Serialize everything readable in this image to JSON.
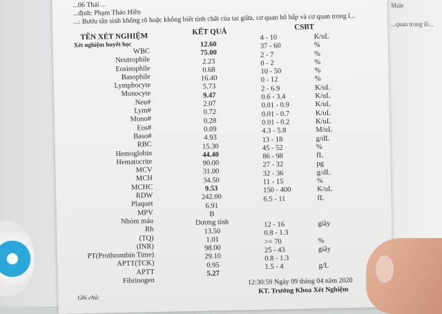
{
  "header": {
    "line0": "...06 Thái ...",
    "doctor": "...định: Phạm Thảo Hiền",
    "diagnosis": "...: Bướu tân sinh không rõ hoặc không biết tính chất của tai giữa, cơ quan hô hấp và cơ quan trong l..."
  },
  "side_text": {
    "top_right": "Male",
    "right": "...quan trong lồ..."
  },
  "columns": {
    "name": "TÊN XÉT NGHIỆM",
    "result": "KẾT QUẢ",
    "range": "CSBT"
  },
  "section": "Xét nghiệm huyết học",
  "tests": [
    "WBC",
    "Neutrophile",
    "Eosinophile",
    "Basophile",
    "Lymphocyte",
    "Monocyte",
    "Neu#",
    "Lym#",
    "Mono#",
    "Eos#",
    "Baso#",
    "RBC",
    "Hemoglobin",
    "Hematocrite",
    "MCV",
    "MCH",
    "MCHC",
    "RDW",
    "Plaquet",
    "MPV",
    "Nhóm máu",
    "Rh",
    "(TQ)",
    "(INR)",
    "PT(Prothrombin Time)",
    "APTT(TCK)",
    "APTT",
    "Fibrinogen"
  ],
  "results": [
    {
      "v": "12.60",
      "bold": true
    },
    {
      "v": "75.00",
      "bold": true
    },
    {
      "v": "2.23"
    },
    {
      "v": "0.68"
    },
    {
      "v": "16.40"
    },
    {
      "v": "5.73"
    },
    {
      "v": "9.47",
      "bold": true
    },
    {
      "v": "2.07"
    },
    {
      "v": "0.72"
    },
    {
      "v": "0.28"
    },
    {
      "v": "0.09"
    },
    {
      "v": "4.93"
    },
    {
      "v": "15.30"
    },
    {
      "v": "44.40",
      "bold": true
    },
    {
      "v": "90.00"
    },
    {
      "v": "31.00"
    },
    {
      "v": "34.50"
    },
    {
      "v": "9.53",
      "bold": true
    },
    {
      "v": "242.00"
    },
    {
      "v": "6.91"
    },
    {
      "v": "B"
    },
    {
      "v": "Dương tính"
    },
    {
      "v": "13.50"
    },
    {
      "v": "1.01"
    },
    {
      "v": "98.00"
    },
    {
      "v": "29.10"
    },
    {
      "v": "0.95"
    },
    {
      "v": "5.27",
      "bold": true
    }
  ],
  "ranges_a": [
    {
      "r": "4 - 10",
      "u": "K/uL"
    },
    {
      "r": "37 - 60",
      "u": "%"
    },
    {
      "r": "2 - 7",
      "u": "%"
    },
    {
      "r": "0 - 2",
      "u": "%"
    },
    {
      "r": "10 - 50",
      "u": "%"
    },
    {
      "r": "0 - 12",
      "u": "%"
    },
    {
      "r": "2 - 6.9",
      "u": "K/uL"
    },
    {
      "r": "0.6 - 3.4",
      "u": "K/uL"
    },
    {
      "r": "0.01 - 0.9",
      "u": "K/uL"
    },
    {
      "r": "0.01 - 0.7",
      "u": "K/uL"
    },
    {
      "r": "0.01 - 0.2",
      "u": "K/uL"
    },
    {
      "r": "4.3 - 5.8",
      "u": "M/uL"
    },
    {
      "r": "13 - 18",
      "u": "g/dL"
    },
    {
      "r": "45 - 52",
      "u": "%"
    },
    {
      "r": "86 - 98",
      "u": "fL"
    },
    {
      "r": "27 - 32",
      "u": "pg"
    },
    {
      "r": "32 - 36",
      "u": "g/dL"
    },
    {
      "r": "11 - 15",
      "u": "%"
    },
    {
      "r": "150 - 400",
      "u": "K/uL"
    },
    {
      "r": "6.5 - 11",
      "u": "fL"
    }
  ],
  "ranges_b": [
    {
      "r": "12 - 16",
      "u": "giây"
    },
    {
      "r": "0.8 - 1.3",
      "u": ""
    },
    {
      "r": ">= 70",
      "u": "%"
    },
    {
      "r": "25 - 43",
      "u": "giây"
    },
    {
      "r": "0.8 - 1.3",
      "u": ""
    },
    {
      "r": "1.5 - 4",
      "u": "g/L"
    }
  ],
  "footer": {
    "note_label": "Ghi chú:",
    "datetime": "12:30:59   Ngày 09 tháng 04 năm 2020",
    "signer": "KT. Trưởng Khoa Xét Nghiệm"
  }
}
